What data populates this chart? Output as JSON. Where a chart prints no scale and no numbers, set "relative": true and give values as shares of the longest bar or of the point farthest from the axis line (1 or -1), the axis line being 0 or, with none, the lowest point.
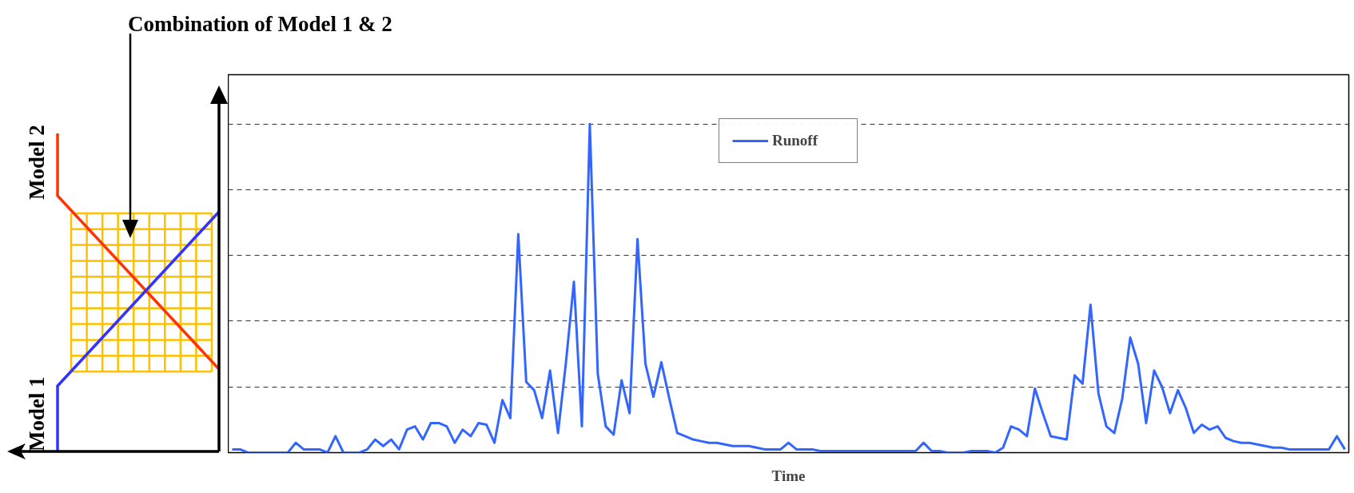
{
  "chart_data": [
    {
      "type": "other",
      "annotations": [
        "Combination of Model 1 & 2",
        "Model 2",
        "Model 1"
      ]
    },
    {
      "type": "line",
      "relative": true,
      "xlabel": "Time",
      "legend": "top",
      "grid": "y",
      "tick_labels": false,
      "line_style": "solid",
      "marker": "none",
      "categories": [
        null,
        null,
        null,
        null,
        null,
        null,
        null,
        null,
        null,
        null,
        null,
        null,
        null,
        null,
        null,
        null,
        null,
        null,
        null,
        null,
        null,
        null,
        null,
        null,
        null,
        null,
        null,
        null,
        null,
        null,
        null,
        null,
        null,
        null,
        null,
        null,
        null,
        null,
        null,
        null,
        null,
        null,
        null,
        null,
        null,
        null,
        null,
        null,
        null,
        null,
        null,
        null,
        null,
        null,
        null,
        null,
        null,
        null,
        null,
        null,
        null,
        null,
        null,
        null,
        null,
        null,
        null,
        null,
        null,
        null,
        null,
        null,
        null,
        null,
        null,
        null,
        null,
        null,
        null,
        null,
        null,
        null,
        null,
        null,
        null,
        null,
        null,
        null,
        null,
        null,
        null,
        null,
        null,
        null,
        null,
        null,
        null,
        null,
        null,
        null,
        null,
        null,
        null,
        null,
        null,
        null,
        null,
        null,
        null,
        null,
        null,
        null,
        null,
        null,
        null,
        null,
        null,
        null,
        null,
        null,
        null,
        null,
        null,
        null,
        null,
        null,
        null,
        null,
        null,
        null,
        null,
        null,
        null,
        null,
        null,
        null,
        null,
        null,
        null,
        null,
        null
      ],
      "series": [
        {
          "name": "Runoff",
          "color": "#3366ff",
          "values": [
            0.01,
            0.01,
            0,
            0,
            0,
            0,
            0,
            0,
            0.03,
            0.01,
            0.01,
            0.01,
            0,
            0.05,
            0,
            0,
            0,
            0.01,
            0.04,
            0.02,
            0.04,
            0.01,
            0.07,
            0.08,
            0.04,
            0.09,
            0.09,
            0.08,
            0.03,
            0.07,
            0.05,
            0.09,
            0.085,
            0.03,
            0.16,
            0.105,
            0.665,
            0.215,
            0.19,
            0.105,
            0.25,
            0.06,
            0.275,
            0.52,
            0.08,
            1.0,
            0.24,
            0.08,
            0.055,
            0.22,
            0.12,
            0.65,
            0.27,
            0.17,
            0.275,
            0.165,
            0.06,
            0.05,
            0.04,
            0.035,
            0.03,
            0.03,
            0.025,
            0.02,
            0.02,
            0.02,
            0.015,
            0.01,
            0.01,
            0.01,
            0.03,
            0.01,
            0.01,
            0.01,
            0.005,
            0.005,
            0.005,
            0.005,
            0.005,
            0.005,
            0.005,
            0.005,
            0.005,
            0.005,
            0.005,
            0.005,
            0.005,
            0.03,
            0.005,
            0.005,
            0,
            0,
            0,
            0.005,
            0.005,
            0.005,
            0,
            0.015,
            0.08,
            0.07,
            0.05,
            0.195,
            0.12,
            0.05,
            0.045,
            0.04,
            0.235,
            0.21,
            0.45,
            0.18,
            0.08,
            0.06,
            0.165,
            0.35,
            0.27,
            0.09,
            0.25,
            0.2,
            0.12,
            0.19,
            0.135,
            0.06,
            0.085,
            0.07,
            0.08,
            0.045,
            0.035,
            0.03,
            0.03,
            0.025,
            0.02,
            0.015,
            0.015,
            0.01,
            0.01,
            0.01,
            0.01,
            0.01,
            0.01,
            0.05,
            0.01
          ]
        }
      ]
    }
  ]
}
